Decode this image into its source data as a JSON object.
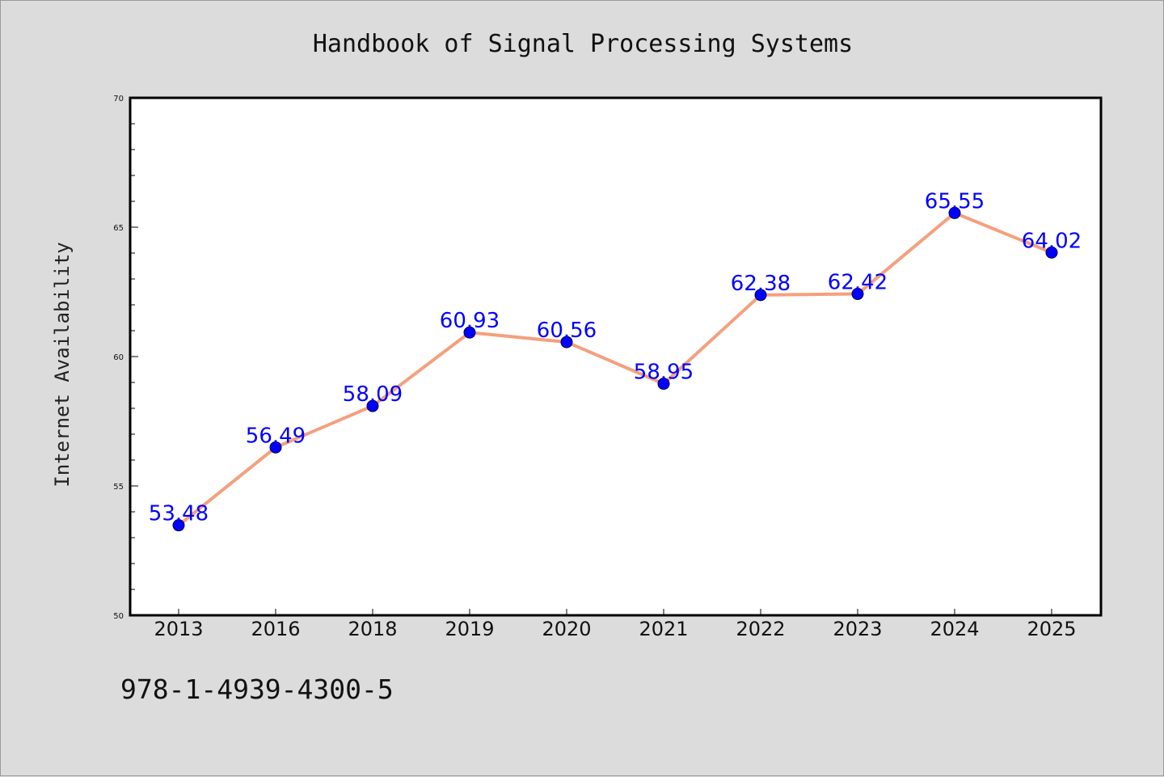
{
  "title": "Handbook of Signal Processing Systems",
  "footer_code": "978-1-4939-4300-5",
  "colors": {
    "background": "#dcdcdc",
    "plot_background": "#ffffff",
    "line": "#f4a07e",
    "marker": "#0000ff",
    "data_label": "#0000ff"
  },
  "chart_data": {
    "type": "line",
    "title": "Handbook of Signal Processing Systems",
    "xlabel": "",
    "ylabel": "Internet Availability",
    "categories": [
      "2013",
      "2016",
      "2018",
      "2019",
      "2020",
      "2021",
      "2022",
      "2023",
      "2024",
      "2025"
    ],
    "series": [
      {
        "values": [
          53.48,
          56.49,
          58.09,
          60.93,
          60.56,
          58.95,
          62.38,
          62.42,
          65.55,
          64.02
        ],
        "labels": [
          "53.48",
          "56.49",
          "58.09",
          "60.93",
          "60.56",
          "58.95",
          "62.38",
          "62.42",
          "65.55",
          "64.02"
        ]
      }
    ],
    "ylim": [
      50,
      70
    ],
    "yticks": [
      50,
      55,
      60,
      65,
      70
    ],
    "y_minor_step": 1,
    "grid": false,
    "legend": "none"
  }
}
